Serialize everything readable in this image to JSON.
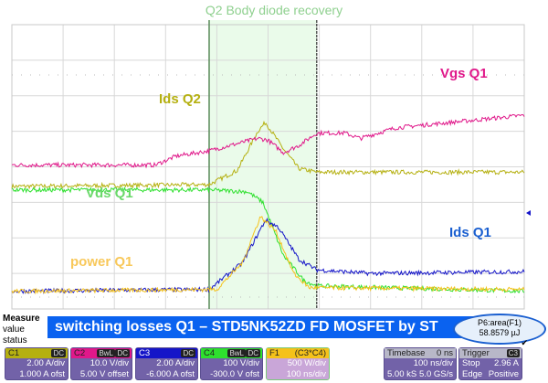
{
  "chart_data": {
    "type": "line",
    "title": "Q2 Body diode recovery",
    "xlim": [
      -500,
      500
    ],
    "ylim": [
      -4,
      4
    ],
    "grid": true,
    "highlight_region": [
      -115,
      95
    ],
    "series": [
      {
        "name": "Vgs Q1",
        "color": "#e0188a",
        "t": [
          -500,
          -220,
          -180,
          -115,
          -20,
          0,
          30,
          60,
          95,
          150,
          180,
          250,
          500
        ],
        "values": [
          0.05,
          0.05,
          0.3,
          0.45,
          0.8,
          0.75,
          0.4,
          0.6,
          0.95,
          0.95,
          0.8,
          1.1,
          1.45
        ]
      },
      {
        "name": "Ids Q2",
        "color": "#b5b010",
        "t": [
          -500,
          -115,
          -60,
          -20,
          -5,
          30,
          60,
          95,
          500
        ],
        "values": [
          -0.55,
          -0.5,
          -0.1,
          1.0,
          1.25,
          0.5,
          -0.05,
          -0.15,
          -0.15
        ]
      },
      {
        "name": "Vds Q1",
        "color": "#2ee02e",
        "t": [
          -500,
          -115,
          -40,
          -10,
          30,
          70,
          95,
          500
        ],
        "values": [
          -0.65,
          -0.65,
          -0.7,
          -1.0,
          -2.5,
          -3.2,
          -3.35,
          -3.5
        ]
      },
      {
        "name": "Ids Q1",
        "color": "#1515c8",
        "t": [
          -500,
          -115,
          -50,
          -5,
          20,
          60,
          95,
          200,
          500
        ],
        "values": [
          -3.5,
          -3.45,
          -2.7,
          -1.5,
          -1.7,
          -2.6,
          -2.9,
          -3.0,
          -2.95
        ]
      },
      {
        "name": "power Q1",
        "color": "#f5c21a",
        "t": [
          -500,
          -100,
          -50,
          -15,
          15,
          50,
          80,
          500
        ],
        "values": [
          -3.5,
          -3.45,
          -2.7,
          -1.4,
          -1.8,
          -3.0,
          -3.4,
          -3.45
        ]
      }
    ]
  },
  "labels": {
    "vgs": "Vgs Q1",
    "ids_q2": "Ids Q2",
    "vds": "Vds Q1",
    "ids_q1": "Ids Q1",
    "power": "power Q1"
  },
  "measure": {
    "title": "Measure",
    "value": "value",
    "status": "status"
  },
  "banner": "switching losses Q1 – STD5NK52ZD FD MOSFET by ST",
  "result": {
    "name": "P6:area(F1)",
    "value": "58.8579 µJ",
    "status": "✔"
  },
  "channels": [
    {
      "name": "C1",
      "color": "#b5b010",
      "tags": [
        "DC"
      ],
      "scale": "2.00 A/div",
      "offset": "1.000 A ofst"
    },
    {
      "name": "C2",
      "color": "#e0188a",
      "tags": [
        "BwL",
        "DC"
      ],
      "scale": "10.0 V/div",
      "offset": "5.00 V offset"
    },
    {
      "name": "C3",
      "color": "#1515c8",
      "tags": [
        "DC"
      ],
      "scale": "2.00 A/div",
      "offset": "-6.000 A ofst"
    },
    {
      "name": "C4",
      "color": "#2ee02e",
      "tags": [
        "BwL",
        "DC"
      ],
      "scale": "100 V/div",
      "offset": "-300.0 V ofst"
    },
    {
      "name": "F1",
      "color": "#f5c21a",
      "formula": "(C3*C4)",
      "scale": "500 W/div",
      "offset": "100 ns/div"
    }
  ],
  "timebase": {
    "title": "Timebase",
    "delay": "0 ns",
    "scale": "100 ns/div",
    "samples": "5.00 kS",
    "rate": "5.0 GS/s"
  },
  "trigger": {
    "title": "Trigger",
    "source": "C3",
    "mode": "Stop",
    "level": "2.96 A",
    "type": "Edge",
    "slope": "Positive"
  }
}
